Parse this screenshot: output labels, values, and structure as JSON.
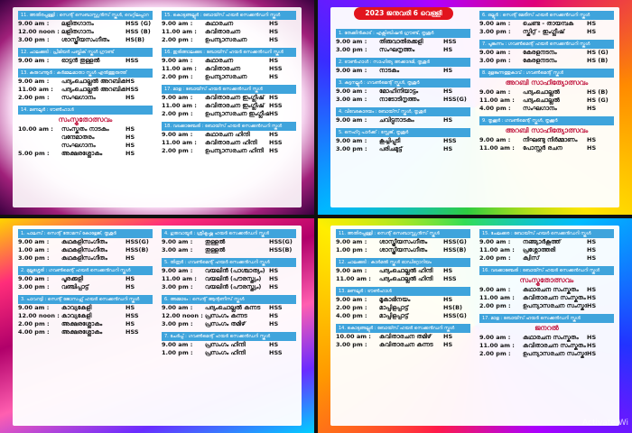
{
  "panels": [
    {
      "columns": [
        [
          {
            "header": "11. അതിരപ്പള്ളി : സെന്റ് സെബാസ്റ്റ്യൻസ് സ്കൂൾ, വെറ്റിലപ്പാറ",
            "rows": [
              [
                "9.00 am :",
                "ലളിതഗാനം",
                "HSS (G)"
              ],
              [
                "12.00 noon :",
                "ലളിതഗാനം",
                "HSS (B)"
              ],
              [
                "3.00 pm :",
                "ശാസ്ത്രീയസംഗീതം",
                "HS(B)"
              ]
            ]
          },
          {
            "header": "12. ചാലക്കുടി : പ്രീമിയർ പബ്ലിക് സ്കൂൾ ഗ്രൗണ്ട്",
            "rows": [
              [
                "9.00 am :",
                "ഓട്ടൻ തുള്ളൽ",
                "HSS"
              ]
            ]
          },
          {
            "header": "13. കരുവന്നൂർ : കർമ്മലമാതാ സ്കൂൾ എൽത്തുരുത്ത്",
            "rows": [
              [
                "9.00 am :",
                "പദ്യംചൊല്ലൽ അറബിക്",
                "HS"
              ],
              [
                "11.00 am :",
                "പദ്യംചൊല്ലൽ അറബിക്",
                "HSS"
              ],
              [
                "2.00 pm :",
                "സംഘഗാനം",
                "HS"
              ]
            ]
          },
          {
            "header": "14. മണലൂർ : ടൗൺഹാൾ",
            "subtitle": "സംസ്കൃതോത്സവം",
            "rows": [
              [
                "10.00 am :",
                "സംസ്കൃതം നാടകം",
                "HS"
              ],
              [
                "",
                "വന്ദേമാതരം",
                "HS"
              ],
              [
                "",
                "സംഘഗാനം",
                "HS"
              ],
              [
                "5.00 pm :",
                "അക്ഷരശ്ലോകം",
                "HS"
              ]
            ]
          }
        ],
        [
          {
            "header": "15. കൊടുങ്ങല്ലൂർ : ബോയ്സ് ഹയർ സെക്കൻഡറി സ്കൂൾ",
            "rows": [
              [
                "9.00 am :",
                "കഥാരചന",
                "HS"
              ],
              [
                "11.00 am :",
                "കവിതാരചന",
                "HS"
              ],
              [
                "2.00 pm :",
                "ഉപന്യാസരചന",
                "HS"
              ]
            ]
          },
          {
            "header": "16. ഇരിങ്ങാലക്കുട : ബോയ്സ് ഹയർ സെക്കൻഡറി സ്കൂൾ",
            "rows": [
              [
                "9.00 am :",
                "കഥാരചന",
                "HS"
              ],
              [
                "11.00 am :",
                "കവിതാരചന",
                "HSS"
              ],
              [
                "2.00 pm :",
                "ഉപന്യാസരചന",
                "HS"
              ]
            ]
          },
          {
            "header": "17. മാള : ബോയ്സ് ഹയർ സെക്കൻഡറി സ്കൂൾ",
            "rows": [
              [
                "9.00 am :",
                "കവിതാരചന ഇംഗ്ലീഷ്",
                "HS"
              ],
              [
                "11.00 am :",
                "കവിതാരചന ഇംഗ്ലീഷ്",
                "HSS"
              ],
              [
                "2.00 pm :",
                "ഉപന്യാസരചന ഇംഗ്ലീഷ്",
                "HS"
              ]
            ]
          },
          {
            "header": "18. വടക്കാഞ്ചേരി : ബോയ്സ് ഹയർ സെക്കൻഡറി സ്കൂൾ",
            "rows": [
              [
                "9.00 am :",
                "കഥാരചന ഹിന്ദി",
                "HS"
              ],
              [
                "11.00 am :",
                "കവിതാരചന ഹിന്ദി",
                "HSS"
              ],
              [
                "2.00 pm :",
                "ഉപന്യാസരചന ഹിന്ദി",
                "HS"
              ]
            ]
          }
        ]
      ]
    },
    {
      "title": "2023 ജനുവരി 6 വെള്ളി",
      "columns": [
        [
          {
            "header": "1. തേക്കിൻകാട് : എക്സിബിഷൻ ഗ്രൗണ്ട്, തൃശൂർ",
            "rows": [
              [
                "9.00 am :",
                "തിരുവാതിരക്കളി",
                "HSS"
              ],
              [
                "3.00 pm :",
                "സംഘനൃത്തം",
                "HS"
              ]
            ]
          },
          {
            "header": "2. ടൗൺഹാൾ : സാഹിത്യ അക്കാദമി, തൃശൂർ",
            "rows": [
              [
                "9.00 am :",
                "നാടകം",
                "HS"
              ]
            ]
          },
          {
            "header": "3. കുട്ടനല്ലൂർ : ഗവൺമെന്റ് സ്കൂൾ, തൃശൂർ",
            "rows": [
              [
                "9.00 am :",
                "മോഹിനിയാട്ടം",
                "HS"
              ],
              [
                "3.00 am :",
                "നാടോടിനൃത്തം",
                "HSS(G)"
              ]
            ]
          },
          {
            "header": "4. വിവേകോദയം : ബോയ്സ് സ്കൂൾ, തൃശൂർ",
            "rows": [
              [
                "9.00 am :",
                "ചവിട്ടുനാടകം",
                "HS"
              ]
            ]
          },
          {
            "header": "5. നെഹ്റു പാർക്ക് : സ്റ്റേജ്, തൃശൂർ",
            "rows": [
              [
                "9.00 am :",
                "കൂച്ചിപ്പുടി",
                "HSS"
              ],
              [
                "3.00 pm :",
                "പരിചമുട്ട്",
                "HS"
              ]
            ]
          }
        ],
        [
          {
            "header": "6. ഒല്ലൂർ : സെന്റ് മേരീസ് ഹയർ സെക്കൻഡറി സ്കൂൾ",
            "rows": [
              [
                "9.00 am :",
                "ചെണ്ട - തായമ്പക",
                "HS"
              ],
              [
                "3.00 pm :",
                "സ്കിറ്റ് - ഇംഗ്ലീഷ്",
                "HS"
              ]
            ]
          },
          {
            "header": "7. പൂങ്കുന്നം : ഗവൺമെന്റ് ഹയർ സെക്കൻഡറി സ്കൂൾ",
            "rows": [
              [
                "9.00 am :",
                "കേരളനടനം",
                "HS (G)"
              ],
              [
                "3.00 pm :",
                "കേരളനടനം",
                "HS (B)"
              ]
            ]
          },
          {
            "header": "8. മുളങ്കുന്നത്തുകാവ് : ഗവൺമെന്റ് സ്കൂൾ",
            "subtitle": "അറബി സാഹിത്യോത്സവം",
            "rows": [
              [
                "9.00 am :",
                "പദ്യംചൊല്ലൽ",
                "HS (B)"
              ],
              [
                "11.00 am :",
                "പദ്യംചൊല്ലൽ",
                "HS (G)"
              ],
              [
                "4.00 pm :",
                "സംഘഗാനം",
                "HS"
              ]
            ]
          },
          {
            "header": "9. തൃക്കൂർ : ഗവൺമെന്റ് സ്കൂൾ, തൃക്കൂർ",
            "subtitle": "അറബി സാഹിത്യോത്സവം",
            "rows": [
              [
                "9.00 am :",
                "നിഘണ്ടു നിർമ്മാണം",
                "HS"
              ],
              [
                "11.00 am :",
                "പോസ്റ്റർ രചന",
                "HS"
              ]
            ]
          }
        ]
      ]
    },
    {
      "columns": [
        [
          {
            "header": "1. പാലസ് : സെന്റ് തോമസ് കോളേജ്, തൃശൂർ",
            "rows": [
              [
                "9.00 am :",
                "കഥകളിസംഗീതം",
                "HSS(G)"
              ],
              [
                "1.00 am :",
                "കഥകളിസംഗീതം",
                "HSS(B)"
              ],
              [
                "3.00 pm :",
                "കഥകളിസംഗീതം",
                "HS"
              ]
            ]
          },
          {
            "header": "2. മുല്ലശ്ശേരി : ഗവൺമെന്റ് ഹയർ സെക്കൻഡറി സ്കൂൾ",
            "rows": [
              [
                "9.00 am :",
                "പൂരക്കളി",
                "HS"
              ],
              [
                "3.00 pm :",
                "വഞ്ചിപ്പാട്ട്",
                "HS"
              ]
            ]
          },
          {
            "header": "3. പാവറട്ടി : സെന്റ് ജോസഫ്സ് ഹയർ സെക്കൻഡറി സ്കൂൾ",
            "rows": [
              [
                "9.00 am :",
                "കാവ്യകേളി",
                "HS"
              ],
              [
                "12.00 noon :",
                "കാവ്യകേളി",
                "HSS"
              ],
              [
                "2.00 pm :",
                "അക്ഷരശ്ലോകം",
                "HS"
              ],
              [
                "4.00 pm :",
                "അക്ഷരശ്ലോകം",
                "HSS"
              ]
            ]
          }
        ],
        [
          {
            "header": "4. ഗുരുവായൂർ : ശ്രീകൃഷ്ണ ഹയർ സെക്കൻഡറി സ്കൂൾ",
            "rows": [
              [
                "9.00 am :",
                "തുള്ളൽ",
                "HSS(G)"
              ],
              [
                "3.00 am :",
                "തുള്ളൽ",
                "HSS(B)"
              ]
            ]
          },
          {
            "header": "5. തിരൂർ : ഗവൺമെന്റ് ഹയർ സെക്കൻഡറി സ്കൂൾ",
            "rows": [
              [
                "9.00 am :",
                "വയലിൻ (പാശ്ചാത്യം)",
                "HS"
              ],
              [
                "11.00 am :",
                "വയലിൻ (പൗരസ്ത്യം)",
                "HS"
              ],
              [
                "3.00 pm :",
                "വയലിൻ (പൗരസ്ത്യം)",
                "HS"
              ]
            ]
          },
          {
            "header": "6. അമ്മാടം : സെന്റ് ആന്റണീസ് സ്കൂൾ",
            "rows": [
              [
                "9.00 am :",
                "പദ്യംചൊല്ലൽ കന്നട",
                "HSS"
              ],
              [
                "12.00 noon :",
                "പ്രസംഗം കന്നട",
                "HS"
              ],
              [
                "3.00 pm :",
                "പ്രസംഗം തമിഴ്",
                "HS"
              ]
            ]
          },
          {
            "header": "7. ചേർപ്പ് : ഗവൺമെന്റ് ഹയർ സെക്കൻഡറി സ്കൂൾ",
            "rows": [
              [
                "9.00 am :",
                "പ്രസംഗം ഹിന്ദി",
                "HS"
              ],
              [
                "1.00 pm :",
                "പ്രസംഗം ഹിന്ദി",
                "HSS"
              ]
            ]
          }
        ]
      ]
    },
    {
      "columns": [
        [
          {
            "header": "11. അതിരപ്പള്ളി : സെന്റ് സെബാസ്റ്റ്യൻസ് സ്കൂൾ",
            "rows": [
              [
                "9.00 am :",
                "ശാസ്ത്രീയസംഗീതം",
                "HSS(G)"
              ],
              [
                "1.00 pm :",
                "ശാസ്ത്രീയസംഗീതം",
                "HSS(B)"
              ]
            ]
          },
          {
            "header": "12. ചാലക്കുടി : കാർമൽ സ്കൂൾ ഓഡിറ്റോറിയം",
            "rows": [
              [
                "9.00 am :",
                "പദ്യംചൊല്ലൽ ഹിന്ദി",
                "HS"
              ],
              [
                "11.00 am :",
                "പദ്യംചൊല്ലൽ ഹിന്ദി",
                "HSS"
              ]
            ]
          },
          {
            "header": "13. മണലൂർ : ടൗൺഹാൾ",
            "rows": [
              [
                "9.00 am :",
                "മൂകാഭിനയം",
                "HS"
              ],
              [
                "2.00 pm :",
                "മാപ്പിളപ്പാട്ട്",
                "HS(B)"
              ],
              [
                "4.00 pm :",
                "മാപ്പിളപ്പാട്ട്",
                "HSS(G)"
              ]
            ]
          },
          {
            "header": "14. കൊടുങ്ങല്ലൂർ : ബോയ്സ് ഹയർ സെക്കൻഡറി സ്കൂൾ",
            "rows": [
              [
                "10.00 am :",
                "കവിതാരചന തമിഴ്",
                "HS"
              ],
              [
                "3.00 pm :",
                "കവിതാരചന കന്നട",
                "HS"
              ]
            ]
          }
        ],
        [
          {
            "header": "15. ചേലക്കര : ബോയ്സ് ഹയർ സെക്കൻഡറി സ്കൂൾ",
            "rows": [
              [
                "9.00 am :",
                "നങ്ങ്യാർകൂത്ത്",
                "HS"
              ],
              [
                "11.00 am :",
                "പ്രശ്നോത്തരി",
                "HS"
              ],
              [
                "2.00 pm :",
                "ക്വിസ്",
                "HS"
              ]
            ]
          },
          {
            "header": "16. വടക്കാഞ്ചേരി : ബോയ്സ് ഹയർ സെക്കൻഡറി സ്കൂൾ",
            "subtitle": "സംസ്കൃതോത്സവം",
            "rows": [
              [
                "9.00 am :",
                "കഥാരചന സംസ്കൃതം",
                "HS"
              ],
              [
                "11.00 am :",
                "കവിതാരചന സംസ്കൃതം",
                "HS"
              ],
              [
                "2.00 pm :",
                "ഉപന്യാസരചന സംസ്കൃതം",
                "HS"
              ]
            ]
          },
          {
            "header": "17. മാള : ബോയ്സ് ഹയർ സെക്കൻഡറി സ്കൂൾ",
            "subtitle": "ജനറൽ",
            "rows": [
              [
                "9.00 am :",
                "കഥാരചന സംസ്കൃതം",
                "HS"
              ],
              [
                "11.00 am :",
                "കവിതാരചന സംസ്കൃതം",
                "HS"
              ],
              [
                "2.00 pm :",
                "ഉപന്യാസരചന സംസ്കൃതം",
                "HS"
              ]
            ]
          }
        ]
      ]
    }
  ],
  "watermark": "Activate Wi"
}
